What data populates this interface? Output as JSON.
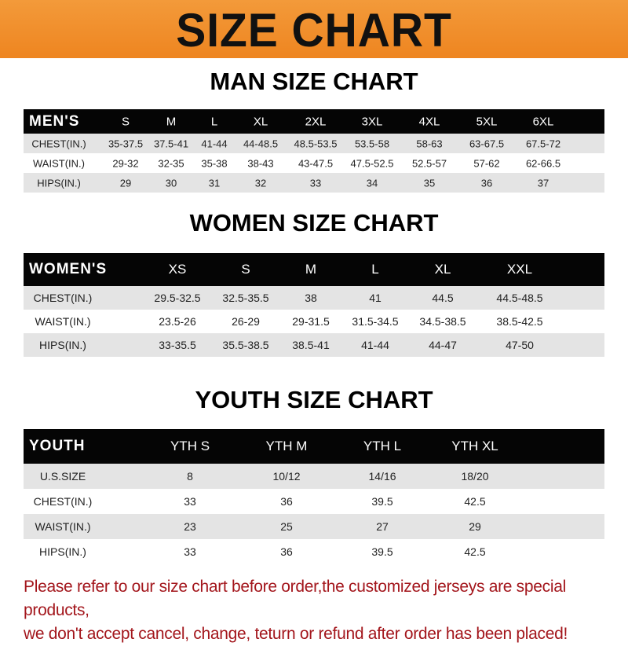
{
  "banner": {
    "title": "SIZE CHART",
    "color": "#f08a24"
  },
  "men": {
    "title": "MAN SIZE CHART",
    "header": [
      "MEN'S",
      "S",
      "M",
      "L",
      "XL",
      "2XL",
      "3XL",
      "4XL",
      "5XL",
      "6XL"
    ],
    "rows": [
      [
        "CHEST(IN.)",
        "35-37.5",
        "37.5-41",
        "41-44",
        "44-48.5",
        "48.5-53.5",
        "53.5-58",
        "58-63",
        "63-67.5",
        "67.5-72"
      ],
      [
        "WAIST(IN.)",
        "29-32",
        "32-35",
        "35-38",
        "38-43",
        "43-47.5",
        "47.5-52.5",
        "52.5-57",
        "57-62",
        "62-66.5"
      ],
      [
        "HIPS(IN.)",
        "29",
        "30",
        "31",
        "32",
        "33",
        "34",
        "35",
        "36",
        "37"
      ]
    ]
  },
  "women": {
    "title": "WOMEN SIZE CHART",
    "header": [
      "WOMEN'S",
      "XS",
      "S",
      "M",
      "L",
      "XL",
      "XXL"
    ],
    "rows": [
      [
        "CHEST(IN.)",
        "29.5-32.5",
        "32.5-35.5",
        "38",
        "41",
        "44.5",
        "44.5-48.5"
      ],
      [
        "WAIST(IN.)",
        "23.5-26",
        "26-29",
        "29-31.5",
        "31.5-34.5",
        "34.5-38.5",
        "38.5-42.5"
      ],
      [
        "HIPS(IN.)",
        "33-35.5",
        "35.5-38.5",
        "38.5-41",
        "41-44",
        "44-47",
        "47-50"
      ]
    ]
  },
  "youth": {
    "title": "YOUTH SIZE CHART",
    "header": [
      "YOUTH",
      "YTH S",
      "YTH M",
      "YTH L",
      "YTH XL"
    ],
    "rows": [
      [
        "U.S.SIZE",
        "8",
        "10/12",
        "14/16",
        "18/20"
      ],
      [
        "CHEST(IN.)",
        "33",
        "36",
        "39.5",
        "42.5"
      ],
      [
        "WAIST(IN.)",
        "23",
        "25",
        "27",
        "29"
      ],
      [
        "HIPS(IN.)",
        "33",
        "36",
        "39.5",
        "42.5"
      ]
    ]
  },
  "footer": {
    "line1": "Please refer to our size chart before order,the customized jerseys are special products,",
    "line2": "we don't accept cancel, change, teturn or refund after order has been placed!",
    "color": "#a3161c"
  }
}
